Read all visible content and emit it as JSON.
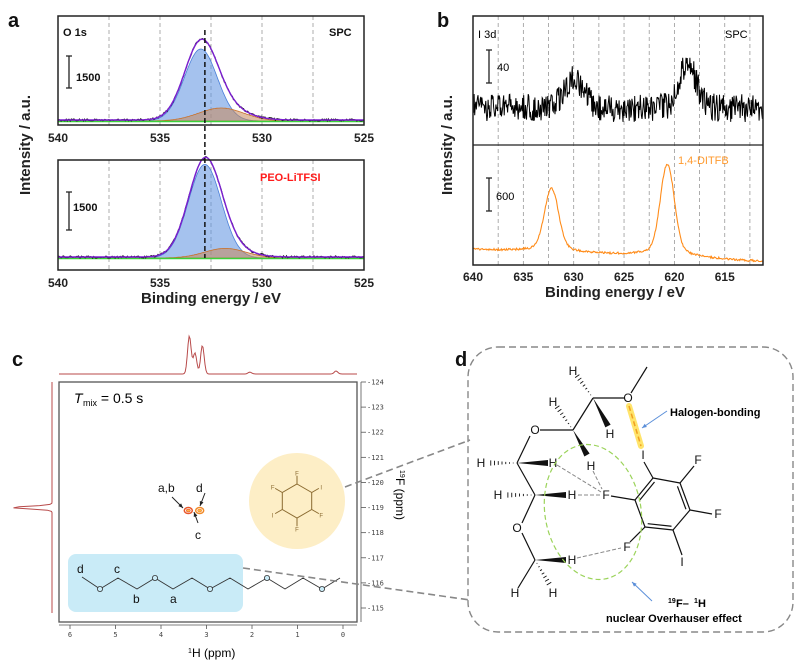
{
  "panel_labels": {
    "a": "a",
    "b": "b",
    "c": "c",
    "d": "d"
  },
  "chart_data": [
    {
      "panel": "a",
      "type": "line",
      "ylabel": "Intensity / a.u.",
      "xlabel": "Binding energy / eV",
      "xlim": [
        540,
        525
      ],
      "xticks": [
        "540",
        "535",
        "530",
        "525"
      ],
      "grid_x": [
        537.5,
        535,
        532.5,
        530,
        527.5
      ],
      "grid": "vertical dashed",
      "reference_line_ev": 532.8,
      "subplots": [
        {
          "label": "O 1s",
          "sample": "SPC",
          "scale_bar": "1500",
          "scale_value": 1500,
          "components": [
            {
              "center": 533.0,
              "height": 3600,
              "fwhm": 1.9,
              "color": "#5b8fe0"
            },
            {
              "center": 532.0,
              "height": 650,
              "fwhm": 2.6,
              "color": "#c8885a"
            }
          ],
          "fit_color": "#7b1fd0",
          "background_color": "#3ad13a"
        },
        {
          "label": "",
          "sample": "PEO-LiTFSI",
          "sample_color": "#ff1a1a",
          "scale_bar": "1500",
          "scale_value": 1500,
          "components": [
            {
              "center": 532.8,
              "height": 3700,
              "fwhm": 1.9,
              "color": "#5b8fe0"
            },
            {
              "center": 531.8,
              "height": 380,
              "fwhm": 2.4,
              "color": "#c8885a"
            }
          ],
          "fit_color": "#7b1fd0",
          "background_color": "#3ad13a"
        }
      ]
    },
    {
      "panel": "b",
      "type": "line",
      "ylabel": "Intensity / a.u.",
      "xlabel": "Binding energy / eV",
      "xlim": [
        640,
        611.2
      ],
      "xticks": [
        "640",
        "635",
        "630",
        "625",
        "620",
        "615"
      ],
      "grid_x": [
        637.5,
        635,
        632.5,
        630,
        627.5,
        625,
        622.5,
        620,
        617.5,
        615,
        612.5
      ],
      "grid": "vertical dashed",
      "subplots": [
        {
          "label": "I 3d",
          "sample": "SPC",
          "scale_bar": "40",
          "scale_value": 40,
          "color": "#000000",
          "peaks": [
            {
              "center": 630.0,
              "height": 35,
              "fwhm": 2.2
            },
            {
              "center": 618.7,
              "height": 55,
              "fwhm": 2.0
            }
          ]
        },
        {
          "label": "",
          "sample": "1,4-DITFB",
          "sample_color": "#ff9a2e",
          "scale_bar": "600",
          "scale_value": 600,
          "color": "#ff8c1a",
          "peaks": [
            {
              "center": 632.2,
              "height": 1050,
              "fwhm": 1.6
            },
            {
              "center": 620.7,
              "height": 1520,
              "fwhm": 1.6
            }
          ]
        }
      ]
    },
    {
      "panel": "c",
      "type": "scatter",
      "annotation_tmix": {
        "T": "T",
        "sub": "mix",
        "value": " = 0.5 s"
      },
      "xlabel_sup": "1",
      "xlabel": "H (ppm)",
      "ylabel_sup": "19",
      "ylabel": "F (ppm)",
      "xlim": [
        6.2,
        -0.2
      ],
      "xticks": [
        "6",
        "5",
        "4",
        "3",
        "2",
        "1",
        "0"
      ],
      "ylim": [
        -124,
        -115
      ],
      "yticks": [
        "-124",
        "-123",
        "-122",
        "-121",
        "-120",
        "-119",
        "-118",
        "-117",
        "-116",
        "-115"
      ],
      "cross_peaks": [
        {
          "h_ppm": 3.4,
          "f_ppm": -119.0,
          "label": "a,b"
        },
        {
          "h_ppm": 3.3,
          "f_ppm": -119.0,
          "label": "c"
        },
        {
          "h_ppm": 3.15,
          "f_ppm": -119.0,
          "label": "d"
        }
      ],
      "projection_color": "#b84a4a",
      "h_projection_peaks": [
        {
          "center": 3.4,
          "height": 1.0
        },
        {
          "center": 3.28,
          "height": 0.55
        },
        {
          "center": 3.12,
          "height": 0.75
        },
        {
          "center": 2.1,
          "height": 0.05
        },
        {
          "center": 0.25,
          "height": 0.08
        }
      ],
      "f_projection_peak": -119.0,
      "chain_labels": [
        "d",
        "c",
        "b",
        "a"
      ],
      "ring_atoms": [
        "F",
        "I",
        "F",
        "F",
        "I",
        "F"
      ]
    }
  ],
  "panel_d": {
    "atoms": {
      "H": "H",
      "O": "O",
      "F": "F",
      "I": "I"
    },
    "halogen_bonding": "Halogen-bonding",
    "noe_line1_sup1": "19",
    "noe_line1_a": "F–",
    "noe_line1_sup2": "1",
    "noe_line1_b": "H",
    "noe_line2": "nuclear Overhauser effect"
  }
}
